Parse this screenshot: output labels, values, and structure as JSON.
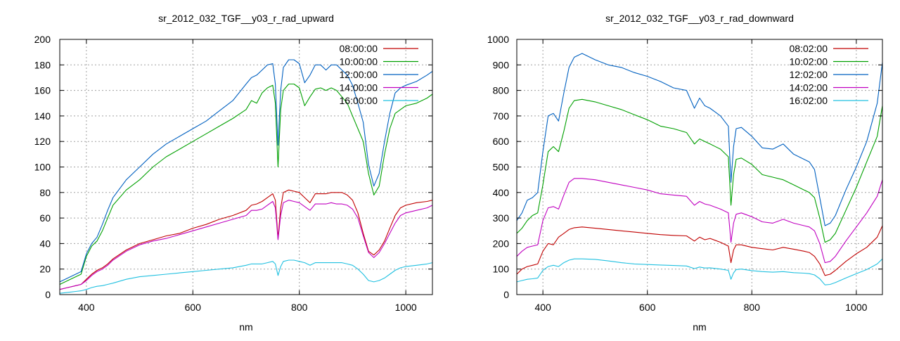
{
  "chart_data": [
    {
      "type": "line",
      "title": "sr_2012_032_TGF__y03_r_rad_upward",
      "xlabel": "nm",
      "ylabel": "",
      "xlim": [
        350,
        1050
      ],
      "ylim": [
        0,
        200
      ],
      "xticks": [
        400,
        600,
        800,
        1000
      ],
      "yticks": [
        0,
        20,
        40,
        60,
        80,
        100,
        120,
        140,
        160,
        180,
        200
      ],
      "grid": true,
      "legend": "top-right",
      "series": [
        {
          "name": "08:00:00",
          "color": "#c00000",
          "x": [
            350,
            360,
            370,
            380,
            390,
            400,
            410,
            420,
            430,
            440,
            450,
            475,
            500,
            525,
            550,
            575,
            600,
            625,
            650,
            675,
            700,
            710,
            720,
            730,
            740,
            750,
            755,
            760,
            765,
            770,
            780,
            790,
            800,
            810,
            820,
            830,
            840,
            850,
            860,
            870,
            880,
            890,
            900,
            910,
            920,
            930,
            940,
            950,
            960,
            970,
            980,
            990,
            1000,
            1020,
            1040,
            1050
          ],
          "y": [
            4,
            5,
            6,
            7,
            8,
            12,
            16,
            19,
            21,
            24,
            28,
            35,
            40,
            43,
            46,
            48,
            52,
            55,
            59,
            62,
            66,
            70,
            71,
            73,
            76,
            79,
            74,
            44,
            68,
            80,
            82,
            81,
            80,
            76,
            72,
            79,
            79,
            79,
            80,
            80,
            80,
            78,
            74,
            64,
            48,
            34,
            31,
            35,
            42,
            52,
            62,
            68,
            70,
            72,
            73,
            74
          ]
        },
        {
          "name": "10:00:00",
          "color": "#00a000",
          "x": [
            350,
            360,
            370,
            380,
            390,
            400,
            410,
            420,
            430,
            440,
            450,
            475,
            500,
            525,
            550,
            575,
            600,
            625,
            650,
            675,
            700,
            710,
            720,
            730,
            740,
            750,
            755,
            760,
            765,
            770,
            780,
            790,
            800,
            810,
            820,
            830,
            840,
            850,
            860,
            870,
            880,
            890,
            900,
            910,
            920,
            930,
            940,
            950,
            960,
            970,
            980,
            990,
            1000,
            1020,
            1040,
            1050
          ],
          "y": [
            8,
            10,
            12,
            14,
            16,
            30,
            38,
            42,
            50,
            60,
            70,
            82,
            90,
            100,
            108,
            114,
            120,
            126,
            132,
            138,
            145,
            152,
            150,
            158,
            162,
            164,
            150,
            100,
            145,
            160,
            165,
            165,
            162,
            148,
            155,
            161,
            162,
            160,
            162,
            160,
            155,
            150,
            140,
            130,
            120,
            95,
            78,
            85,
            110,
            130,
            142,
            145,
            148,
            150,
            154,
            157
          ]
        },
        {
          "name": "12:00:00",
          "color": "#0060c0",
          "x": [
            350,
            360,
            370,
            380,
            390,
            400,
            410,
            420,
            430,
            440,
            450,
            475,
            500,
            525,
            550,
            575,
            600,
            625,
            650,
            675,
            700,
            710,
            720,
            730,
            740,
            750,
            755,
            760,
            765,
            770,
            780,
            790,
            800,
            810,
            820,
            830,
            840,
            850,
            860,
            870,
            880,
            890,
            900,
            910,
            920,
            930,
            940,
            950,
            960,
            970,
            980,
            990,
            1000,
            1020,
            1040,
            1050
          ],
          "y": [
            10,
            12,
            14,
            16,
            18,
            32,
            40,
            45,
            55,
            66,
            76,
            90,
            100,
            110,
            118,
            124,
            130,
            136,
            144,
            152,
            165,
            170,
            172,
            176,
            180,
            181,
            165,
            117,
            160,
            178,
            184,
            184,
            181,
            166,
            172,
            180,
            180,
            176,
            180,
            180,
            176,
            172,
            164,
            150,
            135,
            102,
            85,
            95,
            120,
            142,
            158,
            162,
            164,
            167,
            172,
            175
          ]
        },
        {
          "name": "14:00:00",
          "color": "#c000c0",
          "x": [
            350,
            360,
            370,
            380,
            390,
            400,
            410,
            420,
            430,
            440,
            450,
            475,
            500,
            525,
            550,
            575,
            600,
            625,
            650,
            675,
            700,
            710,
            720,
            730,
            740,
            750,
            755,
            760,
            765,
            770,
            780,
            790,
            800,
            810,
            820,
            830,
            840,
            850,
            860,
            870,
            880,
            890,
            900,
            910,
            920,
            930,
            940,
            950,
            960,
            970,
            980,
            990,
            1000,
            1020,
            1040,
            1050
          ],
          "y": [
            4,
            5,
            6,
            7,
            8,
            11,
            15,
            18,
            20,
            23,
            27,
            34,
            39,
            42,
            44,
            47,
            50,
            53,
            56,
            59,
            62,
            66,
            66,
            67,
            70,
            73,
            68,
            43,
            62,
            72,
            74,
            73,
            72,
            69,
            66,
            71,
            71,
            71,
            72,
            71,
            71,
            70,
            67,
            60,
            46,
            33,
            29,
            33,
            40,
            48,
            56,
            62,
            64,
            66,
            68,
            70
          ]
        },
        {
          "name": "16:00:00",
          "color": "#20c0e0",
          "x": [
            350,
            360,
            370,
            380,
            390,
            400,
            410,
            420,
            430,
            440,
            450,
            475,
            500,
            525,
            550,
            575,
            600,
            625,
            650,
            675,
            700,
            710,
            720,
            730,
            740,
            750,
            755,
            760,
            765,
            770,
            780,
            790,
            800,
            810,
            820,
            830,
            840,
            850,
            860,
            870,
            880,
            890,
            900,
            910,
            920,
            930,
            940,
            950,
            960,
            970,
            980,
            990,
            1000,
            1020,
            1040,
            1050
          ],
          "y": [
            1,
            1.5,
            2,
            2.5,
            3,
            4,
            5.5,
            6.5,
            7,
            8,
            9,
            12,
            14,
            15,
            16,
            17,
            18,
            19,
            20,
            21,
            23,
            24,
            24,
            24,
            25,
            26,
            24,
            15,
            22,
            26,
            27,
            27,
            26,
            25,
            23,
            25,
            25,
            25,
            25,
            25,
            25,
            24,
            23,
            20,
            16,
            11,
            10,
            11,
            13,
            16,
            19,
            21,
            22,
            23,
            24,
            25
          ]
        }
      ]
    },
    {
      "type": "line",
      "title": "sr_2012_032_TGF__y03_r_rad_downward",
      "xlabel": "nm",
      "ylabel": "",
      "xlim": [
        350,
        1050
      ],
      "ylim": [
        0,
        1000
      ],
      "xticks": [
        400,
        600,
        800,
        1000
      ],
      "yticks": [
        0,
        100,
        200,
        300,
        400,
        500,
        600,
        700,
        800,
        900,
        1000
      ],
      "grid": true,
      "legend": "top-right",
      "series": [
        {
          "name": "08:02:00",
          "color": "#c00000",
          "x": [
            350,
            360,
            370,
            380,
            390,
            400,
            410,
            420,
            430,
            440,
            450,
            460,
            475,
            500,
            525,
            550,
            575,
            600,
            625,
            650,
            675,
            690,
            700,
            710,
            720,
            740,
            755,
            760,
            765,
            770,
            780,
            800,
            820,
            840,
            860,
            880,
            900,
            910,
            920,
            930,
            940,
            950,
            960,
            980,
            1000,
            1020,
            1040,
            1050
          ],
          "y": [
            80,
            100,
            110,
            115,
            120,
            170,
            200,
            195,
            225,
            240,
            255,
            262,
            265,
            260,
            255,
            250,
            245,
            240,
            235,
            232,
            230,
            210,
            225,
            215,
            220,
            205,
            190,
            125,
            175,
            195,
            195,
            185,
            180,
            175,
            185,
            178,
            170,
            165,
            150,
            120,
            75,
            80,
            95,
            130,
            160,
            185,
            225,
            270
          ]
        },
        {
          "name": "10:02:00",
          "color": "#00a000",
          "x": [
            350,
            360,
            370,
            380,
            390,
            400,
            410,
            420,
            430,
            440,
            450,
            460,
            475,
            500,
            525,
            550,
            575,
            600,
            625,
            650,
            675,
            690,
            700,
            710,
            720,
            740,
            755,
            760,
            765,
            770,
            780,
            800,
            820,
            840,
            860,
            880,
            900,
            910,
            920,
            930,
            940,
            950,
            960,
            980,
            1000,
            1020,
            1040,
            1050
          ],
          "y": [
            240,
            260,
            290,
            310,
            320,
            430,
            560,
            580,
            560,
            640,
            730,
            760,
            765,
            755,
            740,
            725,
            705,
            685,
            660,
            650,
            635,
            590,
            610,
            600,
            590,
            570,
            540,
            350,
            470,
            530,
            535,
            510,
            470,
            460,
            450,
            430,
            410,
            400,
            380,
            300,
            205,
            215,
            240,
            330,
            420,
            520,
            620,
            740
          ]
        },
        {
          "name": "12:02:00",
          "color": "#0060c0",
          "x": [
            350,
            360,
            370,
            380,
            390,
            400,
            410,
            420,
            430,
            440,
            450,
            460,
            475,
            500,
            525,
            550,
            575,
            600,
            625,
            650,
            675,
            690,
            700,
            710,
            720,
            740,
            755,
            760,
            765,
            770,
            780,
            800,
            820,
            840,
            860,
            880,
            900,
            910,
            920,
            930,
            940,
            950,
            960,
            980,
            1000,
            1020,
            1040,
            1050
          ],
          "y": [
            290,
            320,
            370,
            380,
            400,
            560,
            700,
            710,
            680,
            790,
            890,
            930,
            945,
            920,
            900,
            890,
            870,
            855,
            835,
            810,
            800,
            730,
            770,
            740,
            730,
            700,
            660,
            440,
            580,
            650,
            655,
            620,
            575,
            570,
            590,
            550,
            530,
            520,
            490,
            380,
            270,
            280,
            310,
            410,
            500,
            600,
            750,
            910
          ]
        },
        {
          "name": "14:02:00",
          "color": "#c000c0",
          "x": [
            350,
            360,
            370,
            380,
            390,
            400,
            410,
            420,
            430,
            440,
            450,
            460,
            475,
            500,
            525,
            550,
            575,
            600,
            625,
            650,
            675,
            690,
            700,
            710,
            720,
            740,
            755,
            760,
            765,
            770,
            780,
            800,
            820,
            840,
            860,
            880,
            900,
            910,
            920,
            930,
            940,
            950,
            960,
            980,
            1000,
            1020,
            1040,
            1050
          ],
          "y": [
            150,
            170,
            185,
            190,
            195,
            290,
            340,
            345,
            335,
            390,
            440,
            455,
            455,
            450,
            440,
            430,
            420,
            410,
            395,
            390,
            385,
            350,
            365,
            355,
            350,
            335,
            320,
            205,
            280,
            315,
            320,
            305,
            285,
            280,
            295,
            280,
            270,
            265,
            250,
            200,
            125,
            130,
            150,
            210,
            265,
            320,
            385,
            450
          ]
        },
        {
          "name": "16:02:00",
          "color": "#20c0e0",
          "x": [
            350,
            360,
            370,
            380,
            390,
            400,
            410,
            420,
            430,
            440,
            450,
            460,
            475,
            500,
            525,
            550,
            575,
            600,
            625,
            650,
            675,
            690,
            700,
            710,
            720,
            740,
            755,
            760,
            765,
            770,
            780,
            800,
            820,
            840,
            860,
            880,
            900,
            910,
            920,
            930,
            940,
            950,
            960,
            980,
            1000,
            1020,
            1040,
            1050
          ],
          "y": [
            50,
            55,
            60,
            62,
            65,
            95,
            110,
            115,
            110,
            125,
            135,
            140,
            140,
            138,
            132,
            125,
            120,
            118,
            116,
            114,
            112,
            102,
            108,
            104,
            105,
            100,
            95,
            60,
            85,
            98,
            100,
            94,
            90,
            88,
            90,
            86,
            84,
            82,
            77,
            62,
            38,
            40,
            47,
            65,
            82,
            98,
            120,
            140
          ]
        }
      ]
    }
  ]
}
